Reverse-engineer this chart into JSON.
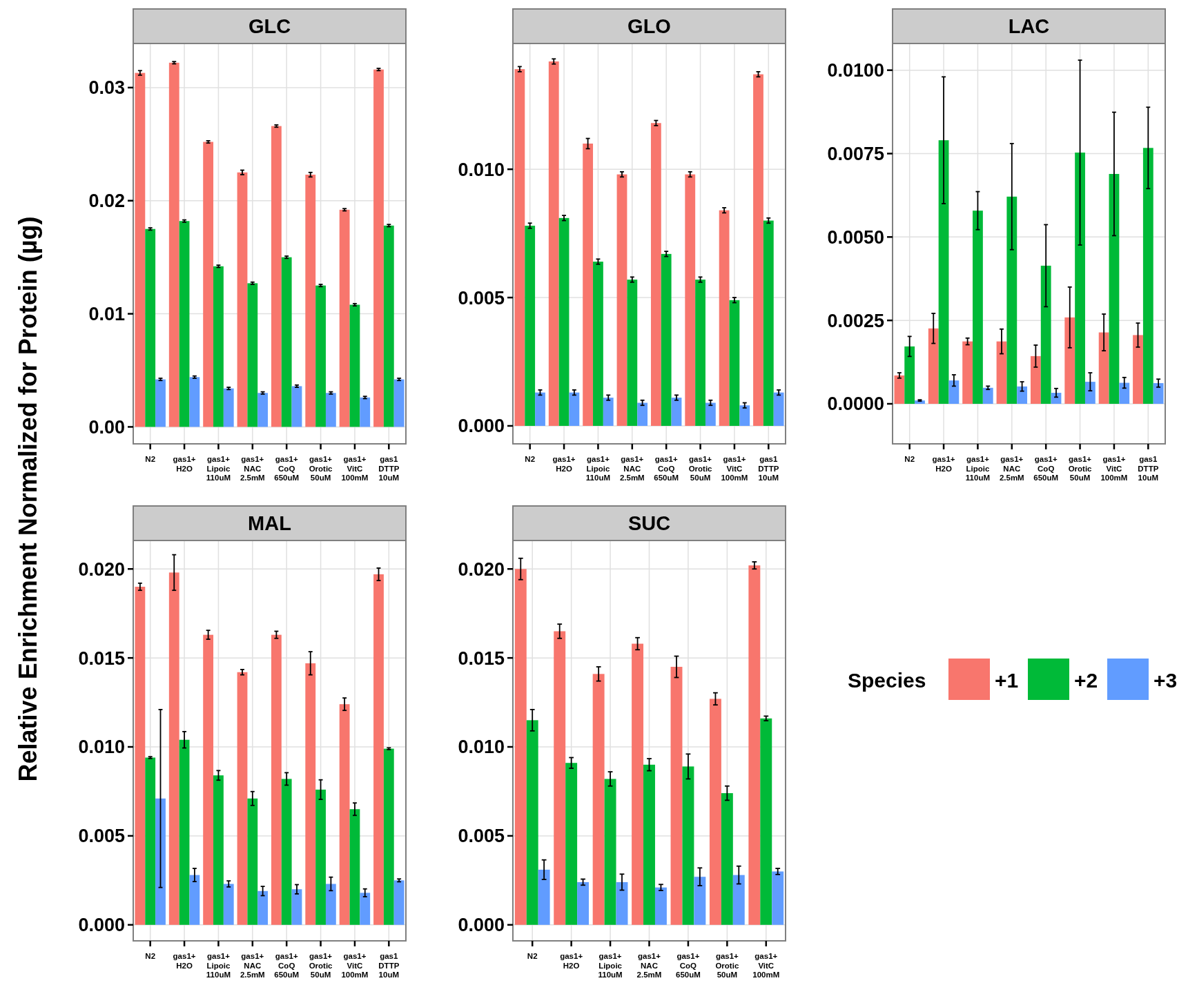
{
  "chart_data": [
    {
      "type": "bar",
      "title": "GLC",
      "ylabel": "Relative Enrichment Normalized for Protein (µg)",
      "grid": true,
      "categories": [
        "N2",
        "gas1+\nH2O",
        "gas1+\nLipoic\n110uM",
        "gas1+\nNAC\n2.5mM",
        "gas1+\nCoQ\n650uM",
        "gas1+\nOrotic\n50uM",
        "gas1+\nVitC\n100mM",
        "gas1\nDTTP\n10uM"
      ],
      "ylim": [
        -0.0015,
        0.0339
      ],
      "yticks": [
        {
          "value": 0,
          "label": "0.00"
        },
        {
          "value": 0.01,
          "label": "0.01"
        },
        {
          "value": 0.02,
          "label": "0.02"
        },
        {
          "value": 0.03,
          "label": "0.03"
        }
      ],
      "series": [
        {
          "color": "#f8766d",
          "values": [
            0.0313,
            0.0322,
            0.0252,
            0.0225,
            0.0266,
            0.0223,
            0.0192,
            0.0316
          ],
          "errors": [
            0.0002,
            0.0001,
            0.0001,
            0.0002,
            0.0001,
            0.0002,
            0.0001,
            0.0001
          ]
        },
        {
          "color": "#00ba38",
          "values": [
            0.0175,
            0.0182,
            0.0142,
            0.0127,
            0.015,
            0.0125,
            0.0108,
            0.0178
          ],
          "errors": [
            0.0001,
            0.0001,
            0.0001,
            0.0001,
            0.0001,
            0.0001,
            0.0001,
            0.0001
          ]
        },
        {
          "color": "#619cff",
          "values": [
            0.0042,
            0.0044,
            0.0034,
            0.003,
            0.0036,
            0.003,
            0.0026,
            0.0042
          ],
          "errors": [
            0.0001,
            0.0001,
            0.0001,
            0.0001,
            0.0001,
            0.0001,
            0.0001,
            0.0001
          ]
        }
      ]
    },
    {
      "type": "bar",
      "title": "GLO",
      "grid": true,
      "categories": [
        "N2",
        "gas1+\nH2O",
        "gas1+\nLipoic\n110uM",
        "gas1+\nNAC\n2.5mM",
        "gas1+\nCoQ\n650uM",
        "gas1+\nOrotic\n50uM",
        "gas1+\nVitC\n100mM",
        "gas1\nDTTP\n10uM"
      ],
      "ylim": [
        -0.0007,
        0.0149
      ],
      "yticks": [
        {
          "value": 0,
          "label": "0.000"
        },
        {
          "value": 0.005,
          "label": "0.005"
        },
        {
          "value": 0.01,
          "label": "0.010"
        }
      ],
      "series": [
        {
          "color": "#f8766d",
          "values": [
            0.0139,
            0.0142,
            0.011,
            0.0098,
            0.0118,
            0.0098,
            0.0084,
            0.0137
          ],
          "errors": [
            0.0001,
            0.0001,
            0.0002,
            0.0001,
            0.0001,
            0.0001,
            0.0001,
            0.0001
          ]
        },
        {
          "color": "#00ba38",
          "values": [
            0.0078,
            0.0081,
            0.0064,
            0.0057,
            0.0067,
            0.0057,
            0.0049,
            0.008
          ],
          "errors": [
            0.0001,
            0.0001,
            0.0001,
            0.0001,
            0.0001,
            0.0001,
            0.0001,
            0.0001
          ]
        },
        {
          "color": "#619cff",
          "values": [
            0.0013,
            0.0013,
            0.0011,
            0.0009,
            0.0011,
            0.0009,
            0.0008,
            0.0013
          ],
          "errors": [
            0.0001,
            0.0001,
            0.0001,
            0.0001,
            0.0001,
            0.0001,
            0.0001,
            0.0001
          ]
        }
      ]
    },
    {
      "type": "bar",
      "title": "LAC",
      "grid": true,
      "categories": [
        "N2",
        "gas1+\nH2O",
        "gas1+\nLipoic\n110uM",
        "gas1+\nNAC\n2.5mM",
        "gas1+\nCoQ\n650uM",
        "gas1+\nOrotic\n50uM",
        "gas1+\nVitC\n100mM",
        "gas1\nDTTP\n10uM"
      ],
      "ylim": [
        -0.0012,
        0.0108
      ],
      "yticks": [
        {
          "value": 0,
          "label": "0.0000"
        },
        {
          "value": 0.0025,
          "label": "0.0025"
        },
        {
          "value": 0.005,
          "label": "0.0050"
        },
        {
          "value": 0.0075,
          "label": "0.0075"
        },
        {
          "value": 0.01,
          "label": "0.0100"
        }
      ],
      "series": [
        {
          "color": "#f8766d",
          "values": [
            0.00085,
            0.00226,
            0.00187,
            0.00187,
            0.00143,
            0.00259,
            0.00214,
            0.00206
          ],
          "errors": [
            8e-05,
            0.00045,
            0.0001,
            0.00037,
            0.00033,
            0.00091,
            0.00055,
            0.00036
          ]
        },
        {
          "color": "#00ba38",
          "values": [
            0.00172,
            0.0079,
            0.00579,
            0.00621,
            0.00414,
            0.00753,
            0.00689,
            0.00767
          ],
          "errors": [
            0.0003,
            0.0019,
            0.00057,
            0.00159,
            0.00123,
            0.00277,
            0.00185,
            0.00122
          ]
        },
        {
          "color": "#619cff",
          "values": [
            0.0001,
            0.0007,
            0.00048,
            0.00052,
            0.00033,
            0.00066,
            0.00063,
            0.00062
          ],
          "errors": [
            2e-05,
            0.00017,
            5e-05,
            0.00014,
            0.00013,
            0.00027,
            0.00016,
            0.00012
          ]
        }
      ]
    },
    {
      "type": "bar",
      "title": "MAL",
      "grid": true,
      "categories": [
        "N2",
        "gas1+\nH2O",
        "gas1+\nLipoic\n110uM",
        "gas1+\nNAC\n2.5mM",
        "gas1+\nCoQ\n650uM",
        "gas1+\nOrotic\n50uM",
        "gas1+\nVitC\n100mM",
        "gas1\nDTTP\n10uM"
      ],
      "ylim": [
        -0.0009,
        0.0216
      ],
      "yticks": [
        {
          "value": 0,
          "label": "0.000"
        },
        {
          "value": 0.005,
          "label": "0.005"
        },
        {
          "value": 0.01,
          "label": "0.010"
        },
        {
          "value": 0.015,
          "label": "0.015"
        },
        {
          "value": 0.02,
          "label": "0.020"
        }
      ],
      "series": [
        {
          "color": "#f8766d",
          "values": [
            0.019,
            0.0198,
            0.0163,
            0.0142,
            0.0163,
            0.0147,
            0.0124,
            0.0197
          ],
          "errors": [
            0.0002,
            0.001,
            0.00025,
            0.00015,
            0.0002,
            0.00065,
            0.00035,
            0.00035
          ]
        },
        {
          "color": "#00ba38",
          "values": [
            0.0094,
            0.0104,
            0.0084,
            0.0071,
            0.0082,
            0.0076,
            0.0065,
            0.0099
          ],
          "errors": [
            5e-05,
            0.00046,
            0.00027,
            0.00039,
            0.00035,
            0.00055,
            0.00035,
            5e-05
          ]
        },
        {
          "color": "#619cff",
          "values": [
            0.0071,
            0.0028,
            0.0023,
            0.0019,
            0.002,
            0.0023,
            0.0018,
            0.0025
          ],
          "errors": [
            0.005,
            0.00037,
            0.00017,
            0.00026,
            0.00026,
            0.00038,
            0.00022,
            8e-05
          ]
        }
      ]
    },
    {
      "type": "bar",
      "title": "SUC",
      "grid": true,
      "legend": "right",
      "legend_title": "Species",
      "categories": [
        "N2",
        "gas1+\nH2O",
        "gas1+\nLipoic\n110uM",
        "gas1+\nNAC\n2.5mM",
        "gas1+\nCoQ\n650uM",
        "gas1+\nOrotic\n50uM",
        "gas1+\nVitC\n100mM"
      ],
      "ylim": [
        -0.0009,
        0.0216
      ],
      "yticks": [
        {
          "value": 0,
          "label": "0.000"
        },
        {
          "value": 0.005,
          "label": "0.005"
        },
        {
          "value": 0.01,
          "label": "0.010"
        },
        {
          "value": 0.015,
          "label": "0.015"
        },
        {
          "value": 0.02,
          "label": "0.020"
        }
      ],
      "series": [
        {
          "name": "+1",
          "color": "#f8766d",
          "values": [
            0.02,
            0.0165,
            0.0141,
            0.0158,
            0.0145,
            0.0127,
            0.0202
          ],
          "errors": [
            0.0006,
            0.0004,
            0.0004,
            0.00034,
            0.0006,
            0.00034,
            0.0002
          ]
        },
        {
          "name": "+2",
          "color": "#00ba38",
          "values": [
            0.0115,
            0.0091,
            0.0082,
            0.009,
            0.0089,
            0.0074,
            0.0116
          ],
          "errors": [
            0.0006,
            0.0003,
            0.0004,
            0.00034,
            0.0007,
            0.0004,
            0.00013
          ]
        },
        {
          "name": "+3",
          "color": "#619cff",
          "values": [
            0.0031,
            0.0024,
            0.0024,
            0.0021,
            0.0027,
            0.0028,
            0.003
          ],
          "errors": [
            0.00055,
            0.00017,
            0.00045,
            0.00017,
            0.0005,
            0.0005,
            0.00017
          ]
        }
      ]
    }
  ]
}
